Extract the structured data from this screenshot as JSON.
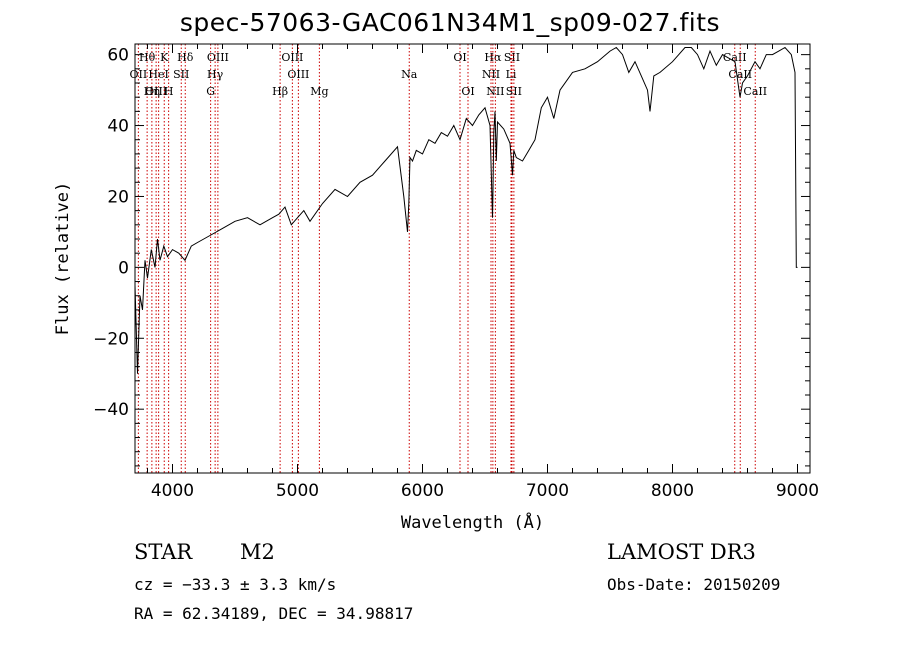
{
  "title": "spec-57063-GAC061N34M1_sp09-027.fits",
  "footer": {
    "class_label": "STAR",
    "subclass": "M2",
    "survey": "LAMOST DR3",
    "cz": "cz = −33.3 ± 3.3 km/s",
    "obs_date": "Obs-Date: 20150209",
    "coords": "RA =  62.34189, DEC =  34.98817"
  },
  "colors": {
    "line": "#000000",
    "marker": "#cc0000",
    "axis": "#000000"
  },
  "chart_data": {
    "type": "line",
    "xlabel": "Wavelength (Å)",
    "ylabel": "Flux (relative)",
    "xlim": [
      3700,
      9100
    ],
    "ylim": [
      -58,
      63
    ],
    "xticks": [
      4000,
      5000,
      6000,
      7000,
      8000,
      9000
    ],
    "yticks": [
      -40,
      -20,
      0,
      20,
      40,
      60
    ],
    "tick_labels_y": [
      "−40",
      "−20",
      "0",
      "20",
      "40",
      "60"
    ],
    "spectrum": {
      "x": [
        3700,
        3720,
        3740,
        3760,
        3780,
        3800,
        3830,
        3860,
        3880,
        3900,
        3930,
        3960,
        4000,
        4050,
        4100,
        4150,
        4200,
        4300,
        4400,
        4500,
        4600,
        4700,
        4800,
        4850,
        4900,
        4950,
        5000,
        5050,
        5100,
        5200,
        5300,
        5400,
        5500,
        5600,
        5700,
        5800,
        5850,
        5880,
        5890,
        5900,
        5920,
        5950,
        6000,
        6050,
        6100,
        6150,
        6200,
        6250,
        6300,
        6350,
        6400,
        6450,
        6500,
        6540,
        6560,
        6563,
        6570,
        6580,
        6590,
        6600,
        6650,
        6700,
        6720,
        6730,
        6750,
        6800,
        6850,
        6900,
        6950,
        7000,
        7050,
        7100,
        7200,
        7300,
        7400,
        7500,
        7550,
        7600,
        7650,
        7700,
        7750,
        7800,
        7820,
        7850,
        7900,
        8000,
        8050,
        8100,
        8150,
        8200,
        8250,
        8300,
        8350,
        8400,
        8450,
        8500,
        8540,
        8560,
        8600,
        8660,
        8700,
        8750,
        8800,
        8850,
        8900,
        8950,
        8980,
        8990,
        9000
      ],
      "y": [
        -5,
        -30,
        -8,
        -12,
        2,
        -3,
        5,
        0,
        8,
        2,
        6,
        3,
        5,
        4,
        2,
        6,
        7,
        9,
        11,
        13,
        14,
        12,
        14,
        15,
        17,
        12,
        14,
        16,
        13,
        18,
        22,
        20,
        24,
        26,
        30,
        34,
        20,
        10,
        18,
        31,
        30,
        33,
        32,
        36,
        35,
        38,
        37,
        40,
        36,
        42,
        40,
        43,
        45,
        40,
        14,
        20,
        38,
        44,
        30,
        41,
        39,
        35,
        26,
        33,
        31,
        30,
        33,
        36,
        45,
        48,
        42,
        50,
        55,
        56,
        58,
        61,
        62,
        60,
        55,
        58,
        54,
        50,
        44,
        54,
        55,
        58,
        60,
        62,
        62,
        60,
        56,
        61,
        57,
        60,
        59,
        58,
        48,
        52,
        54,
        58,
        56,
        60,
        60,
        61,
        62,
        60,
        55,
        0,
        0
      ]
    },
    "lines": [
      {
        "label": "Hθ",
        "x": 3797,
        "row": 1
      },
      {
        "label": "OII",
        "x": 3727,
        "row": 2
      },
      {
        "label": "OIII",
        "x": 3869,
        "row": 3
      },
      {
        "label": "HeI",
        "x": 3889,
        "row": 2
      },
      {
        "label": "K",
        "x": 3934,
        "row": 1
      },
      {
        "label": "Hη",
        "x": 3835,
        "row": 3
      },
      {
        "label": "H",
        "x": 3969,
        "row": 3
      },
      {
        "label": "SII",
        "x": 4070,
        "row": 2
      },
      {
        "label": "Hδ",
        "x": 4102,
        "row": 1
      },
      {
        "label": "OIII",
        "x": 4363,
        "row": 1
      },
      {
        "label": "Hγ",
        "x": 4341,
        "row": 2
      },
      {
        "label": "G",
        "x": 4305,
        "row": 3
      },
      {
        "label": "OIII",
        "x": 4959,
        "row": 1
      },
      {
        "label": "OIII",
        "x": 5007,
        "row": 2
      },
      {
        "label": "Hβ",
        "x": 4861,
        "row": 3
      },
      {
        "label": "Mg",
        "x": 5175,
        "row": 3
      },
      {
        "label": "Na",
        "x": 5894,
        "row": 2
      },
      {
        "label": "OI",
        "x": 6300,
        "row": 1
      },
      {
        "label": "OI",
        "x": 6364,
        "row": 3
      },
      {
        "label": "Hα",
        "x": 6563,
        "row": 1
      },
      {
        "label": "NII",
        "x": 6548,
        "row": 2
      },
      {
        "label": "NII",
        "x": 6583,
        "row": 3
      },
      {
        "label": "SII",
        "x": 6716,
        "row": 1
      },
      {
        "label": "Li",
        "x": 6708,
        "row": 2
      },
      {
        "label": "SII",
        "x": 6731,
        "row": 3
      },
      {
        "label": "CaII",
        "x": 8498,
        "row": 1
      },
      {
        "label": "CaII",
        "x": 8542,
        "row": 2
      },
      {
        "label": "CaII",
        "x": 8662,
        "row": 3
      }
    ]
  }
}
